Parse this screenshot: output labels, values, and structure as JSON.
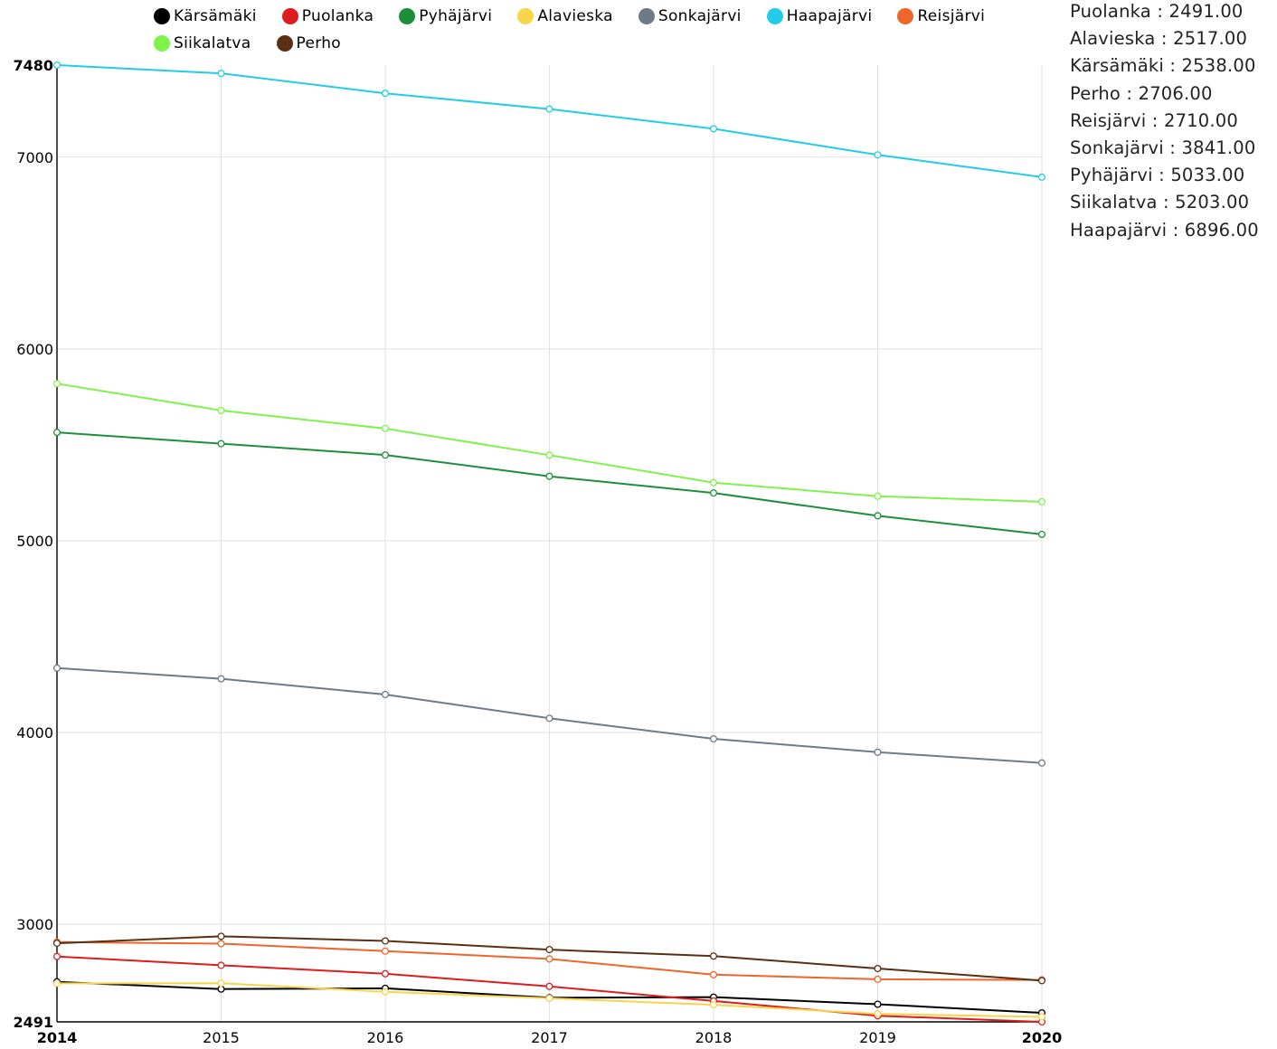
{
  "chart_data": {
    "type": "line",
    "x": [
      2014,
      2015,
      2016,
      2017,
      2018,
      2019,
      2020
    ],
    "ylim": [
      2491,
      7480
    ],
    "y_ticks": [
      3000,
      4000,
      5000,
      6000,
      7000
    ],
    "y_min_label": "2491",
    "y_max_label": "7480",
    "x_tick_labels": [
      "2014",
      "2015",
      "2016",
      "2017",
      "2018",
      "2019",
      "2020"
    ],
    "grid": true,
    "legend_position": "top",
    "series": [
      {
        "name": "Kärsämäki",
        "color": "#000000",
        "values": [
          2700,
          2662,
          2666,
          2617,
          2620,
          2583,
          2538
        ]
      },
      {
        "name": "Puolanka",
        "color": "#dd1c1c",
        "values": [
          2832,
          2786,
          2742,
          2676,
          2600,
          2523,
          2491
        ]
      },
      {
        "name": "Pyhäjärvi",
        "color": "#1d8f3a",
        "values": [
          5565,
          5506,
          5447,
          5336,
          5249,
          5130,
          5033
        ]
      },
      {
        "name": "Alavieska",
        "color": "#f9d44a",
        "values": [
          2692,
          2693,
          2648,
          2614,
          2580,
          2533,
          2517
        ]
      },
      {
        "name": "Sonkajärvi",
        "color": "#6f7a87",
        "values": [
          4336,
          4280,
          4198,
          4074,
          3967,
          3897,
          3841
        ]
      },
      {
        "name": "Haapajärvi",
        "color": "#22cce8",
        "values": [
          7480,
          7437,
          7333,
          7251,
          7148,
          7012,
          6896
        ]
      },
      {
        "name": "Reisjärvi",
        "color": "#f0652a",
        "values": [
          2907,
          2899,
          2860,
          2819,
          2737,
          2713,
          2710
        ]
      },
      {
        "name": "Siikalatva",
        "color": "#7ff24b",
        "values": [
          5819,
          5679,
          5585,
          5446,
          5303,
          5232,
          5203
        ]
      },
      {
        "name": "Perho",
        "color": "#5b2f12",
        "values": [
          2901,
          2937,
          2913,
          2868,
          2834,
          2769,
          2706
        ]
      }
    ],
    "value_list": [
      "Puolanka : 2491.00",
      "Alavieska : 2517.00",
      "Kärsämäki : 2538.00",
      "Perho : 2706.00",
      "Reisjärvi : 2710.00",
      "Sonkajärvi : 3841.00",
      "Pyhäjärvi : 5033.00",
      "Siikalatva : 5203.00",
      "Haapajärvi : 6896.00"
    ]
  }
}
